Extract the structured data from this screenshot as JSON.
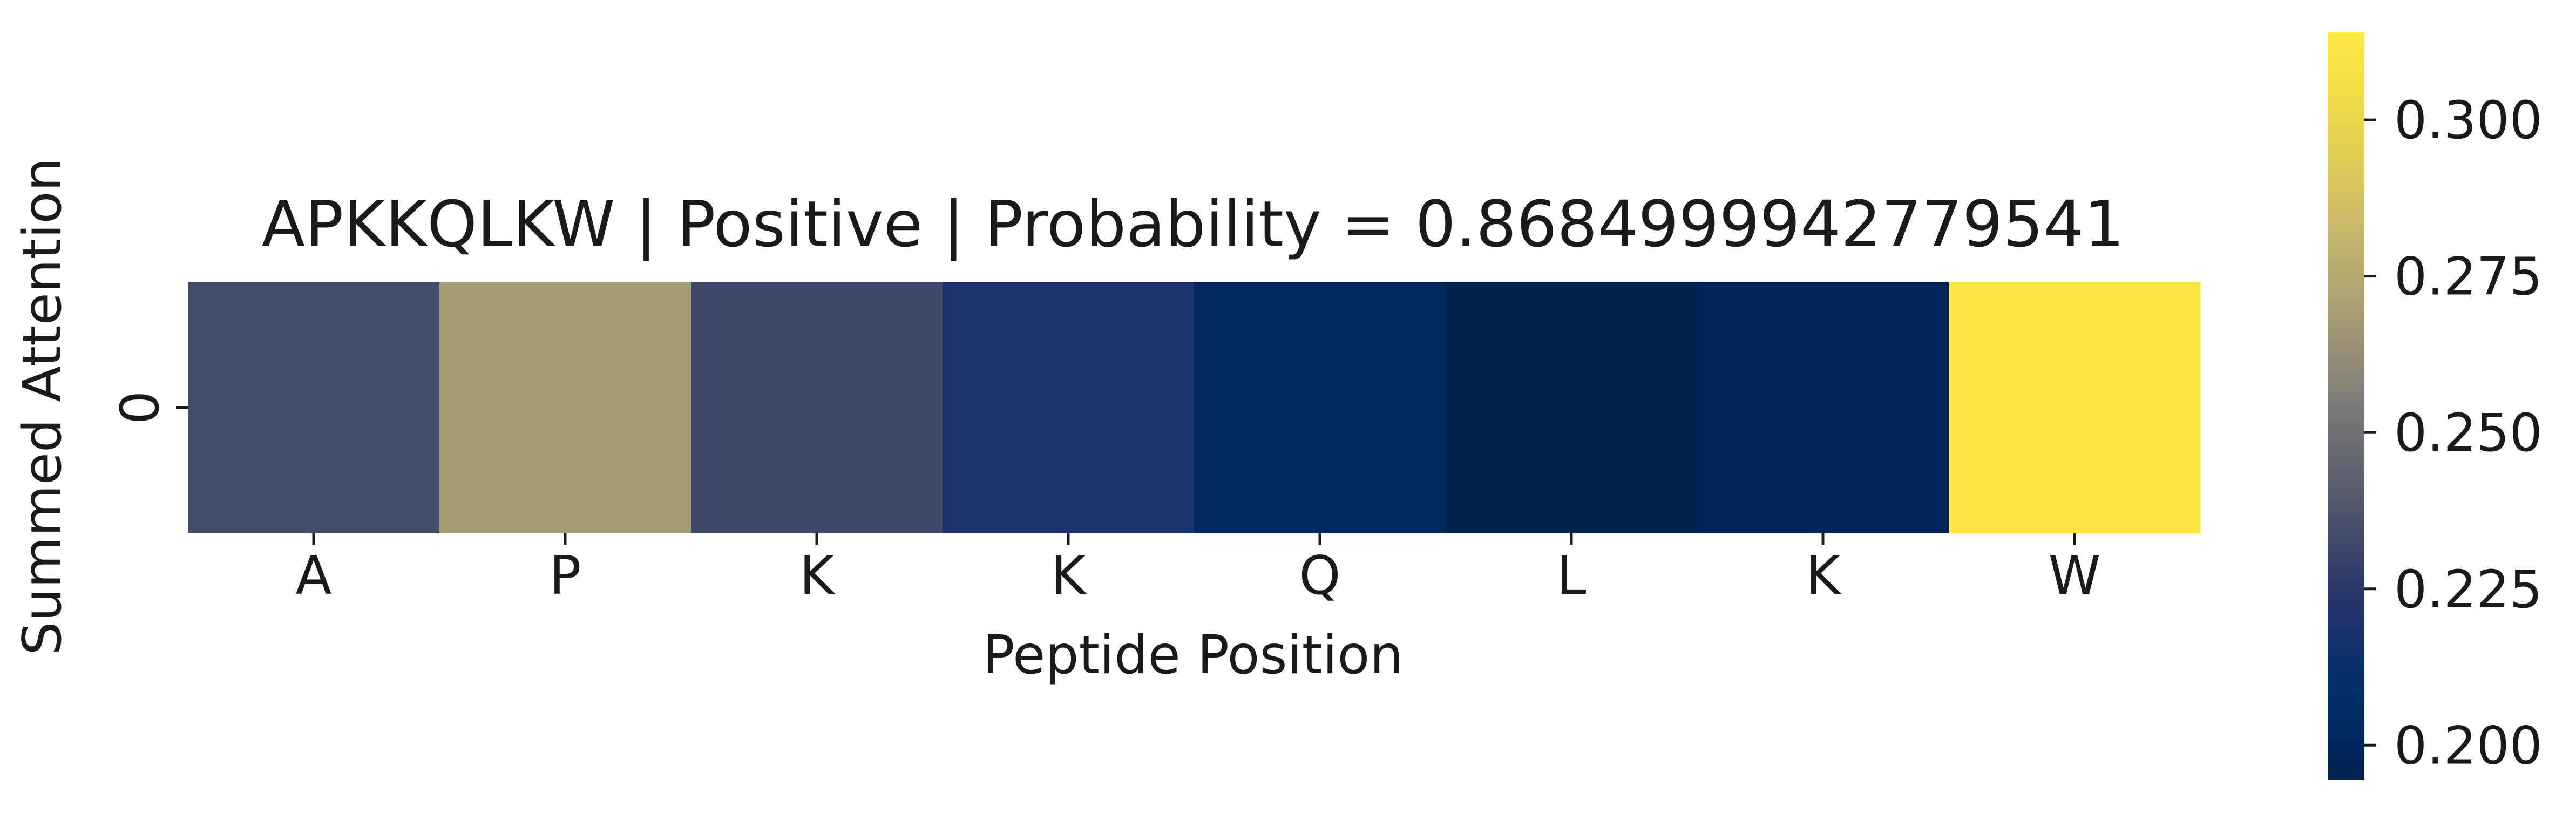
{
  "chart_data": {
    "type": "heatmap",
    "title": "APKKQLKW | Positive | Probability = 0.8684999942779541",
    "xlabel": "Peptide Position",
    "ylabel": "Summed Attention",
    "x_tick_labels": [
      "A",
      "P",
      "K",
      "K",
      "Q",
      "L",
      "K",
      "W"
    ],
    "y_tick_labels": [
      "0"
    ],
    "values": [
      [
        0.234,
        0.268,
        0.232,
        0.22,
        0.202,
        0.195,
        0.199,
        0.312
      ]
    ],
    "colormap": "cividis",
    "colorbar": {
      "range": [
        0.1945,
        0.314
      ],
      "ticks": [
        0.2,
        0.225,
        0.25,
        0.275,
        0.3
      ],
      "tick_labels": [
        "0.200",
        "0.225",
        "0.250",
        "0.275",
        "0.300"
      ]
    },
    "grid": false
  }
}
